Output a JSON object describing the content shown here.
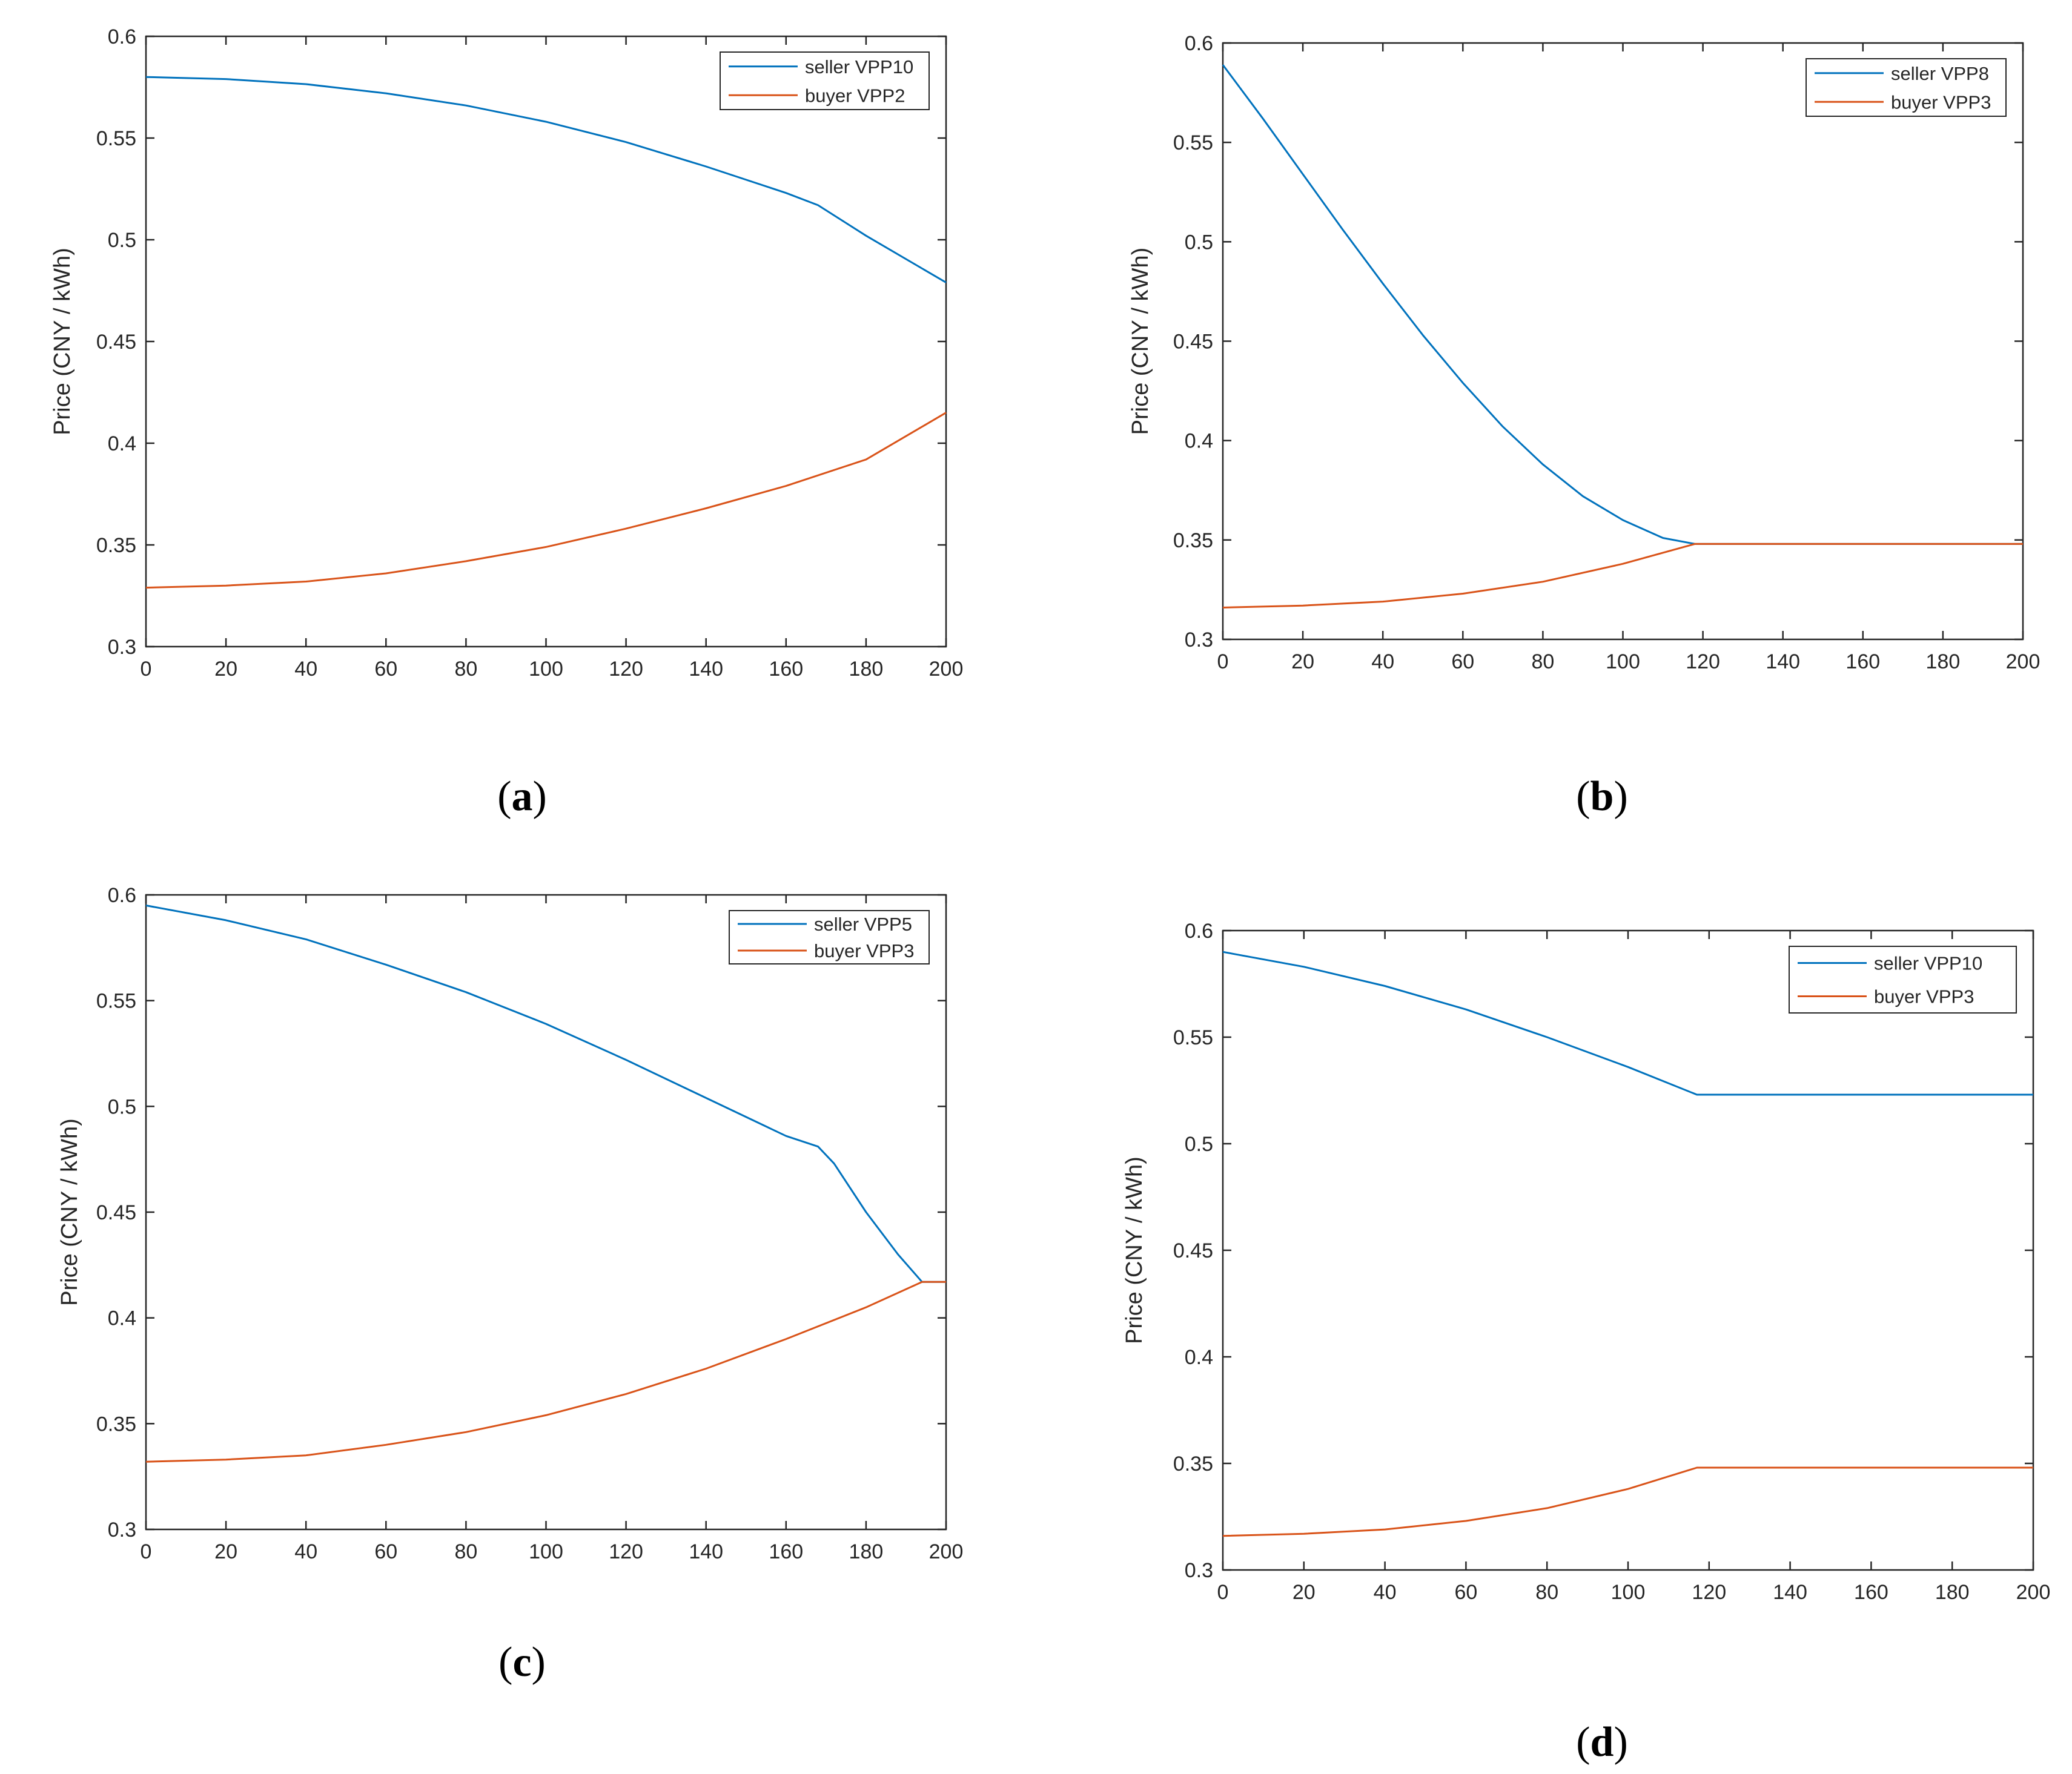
{
  "colors": {
    "seller": "#0072BD",
    "buyer": "#D95319",
    "axis": "#262626"
  },
  "chart_data": [
    {
      "type": "line",
      "caption": {
        "open": "(",
        "letter": "a",
        "close": ")"
      },
      "ylabel": "Price (CNY / kWh)",
      "xlim": [
        0,
        200
      ],
      "ylim": [
        0.3,
        0.6
      ],
      "xticks": [
        0,
        20,
        40,
        60,
        80,
        100,
        120,
        140,
        160,
        180,
        200
      ],
      "xtick_labels": [
        "0",
        "20",
        "40",
        "60",
        "80",
        "100",
        "120",
        "140",
        "160",
        "180",
        "200"
      ],
      "yticks": [
        0.3,
        0.35,
        0.4,
        0.45,
        0.5,
        0.55,
        0.6
      ],
      "ytick_labels": [
        "0.3",
        "0.35",
        "0.4",
        "0.45",
        "0.5",
        "0.55",
        "0.6"
      ],
      "legend_position": "top-right",
      "series": [
        {
          "name": "seller VPP10",
          "color_key": "seller",
          "x": [
            0,
            20,
            40,
            60,
            80,
            100,
            120,
            140,
            160,
            168,
            180,
            200
          ],
          "y": [
            0.58,
            0.579,
            0.5765,
            0.572,
            0.566,
            0.558,
            0.548,
            0.536,
            0.523,
            0.517,
            0.502,
            0.479
          ]
        },
        {
          "name": "buyer VPP2",
          "color_key": "buyer",
          "x": [
            0,
            20,
            40,
            60,
            80,
            100,
            120,
            140,
            160,
            180,
            200
          ],
          "y": [
            0.329,
            0.33,
            0.332,
            0.336,
            0.342,
            0.349,
            0.358,
            0.368,
            0.379,
            0.392,
            0.415
          ]
        }
      ]
    },
    {
      "type": "line",
      "caption": {
        "open": "(",
        "letter": "b",
        "close": ")"
      },
      "ylabel": "Price (CNY / kWh)",
      "xlim": [
        0,
        200
      ],
      "ylim": [
        0.3,
        0.6
      ],
      "xticks": [
        0,
        20,
        40,
        60,
        80,
        100,
        120,
        140,
        160,
        180,
        200
      ],
      "xtick_labels": [
        "0",
        "20",
        "40",
        "60",
        "80",
        "100",
        "120",
        "140",
        "160",
        "180",
        "200"
      ],
      "yticks": [
        0.3,
        0.35,
        0.4,
        0.45,
        0.5,
        0.55,
        0.6
      ],
      "ytick_labels": [
        "0.3",
        "0.35",
        "0.4",
        "0.45",
        "0.5",
        "0.55",
        "0.6"
      ],
      "legend_position": "top-right",
      "series": [
        {
          "name": "seller VPP8",
          "color_key": "seller",
          "x": [
            0,
            10,
            20,
            30,
            40,
            50,
            60,
            70,
            80,
            90,
            100,
            110,
            118,
            200
          ],
          "y": [
            0.589,
            0.562,
            0.534,
            0.506,
            0.479,
            0.453,
            0.429,
            0.407,
            0.388,
            0.372,
            0.36,
            0.351,
            0.348,
            0.348
          ]
        },
        {
          "name": "buyer VPP3",
          "color_key": "buyer",
          "x": [
            0,
            20,
            40,
            60,
            80,
            100,
            118,
            200
          ],
          "y": [
            0.316,
            0.317,
            0.319,
            0.323,
            0.329,
            0.338,
            0.348,
            0.348
          ]
        }
      ]
    },
    {
      "type": "line",
      "caption": {
        "open": "(",
        "letter": "c",
        "close": ")"
      },
      "ylabel": "Price (CNY / kWh)",
      "xlim": [
        0,
        200
      ],
      "ylim": [
        0.3,
        0.6
      ],
      "xticks": [
        0,
        20,
        40,
        60,
        80,
        100,
        120,
        140,
        160,
        180,
        200
      ],
      "xtick_labels": [
        "0",
        "20",
        "40",
        "60",
        "80",
        "100",
        "120",
        "140",
        "160",
        "180",
        "200"
      ],
      "yticks": [
        0.3,
        0.35,
        0.4,
        0.45,
        0.5,
        0.55,
        0.6
      ],
      "ytick_labels": [
        "0.3",
        "0.35",
        "0.4",
        "0.45",
        "0.5",
        "0.55",
        "0.6"
      ],
      "legend_position": "top-right",
      "series": [
        {
          "name": "seller VPP5",
          "color_key": "seller",
          "x": [
            0,
            20,
            40,
            60,
            80,
            100,
            120,
            140,
            160,
            168,
            172,
            180,
            188,
            194,
            200
          ],
          "y": [
            0.595,
            0.588,
            0.579,
            0.567,
            0.554,
            0.539,
            0.522,
            0.504,
            0.486,
            0.481,
            0.473,
            0.45,
            0.43,
            0.417,
            0.417
          ]
        },
        {
          "name": "buyer VPP3",
          "color_key": "buyer",
          "x": [
            0,
            20,
            40,
            60,
            80,
            100,
            120,
            140,
            160,
            180,
            194,
            200
          ],
          "y": [
            0.332,
            0.333,
            0.335,
            0.34,
            0.346,
            0.354,
            0.364,
            0.376,
            0.39,
            0.405,
            0.417,
            0.417
          ]
        }
      ]
    },
    {
      "type": "line",
      "caption": {
        "open": "(",
        "letter": "d",
        "close": ")"
      },
      "ylabel": "Price (CNY / kWh)",
      "xlim": [
        0,
        200
      ],
      "ylim": [
        0.3,
        0.6
      ],
      "xticks": [
        0,
        20,
        40,
        60,
        80,
        100,
        120,
        140,
        160,
        180,
        200
      ],
      "xtick_labels": [
        "0",
        "20",
        "40",
        "60",
        "80",
        "100",
        "120",
        "140",
        "160",
        "180",
        "200"
      ],
      "yticks": [
        0.3,
        0.35,
        0.4,
        0.45,
        0.5,
        0.55,
        0.6
      ],
      "ytick_labels": [
        "0.3",
        "0.35",
        "0.4",
        "0.45",
        "0.5",
        "0.55",
        "0.6"
      ],
      "legend_position": "top-right",
      "series": [
        {
          "name": "seller VPP10",
          "color_key": "seller",
          "x": [
            0,
            20,
            40,
            60,
            80,
            100,
            117,
            200
          ],
          "y": [
            0.59,
            0.583,
            0.574,
            0.563,
            0.55,
            0.536,
            0.523,
            0.523
          ]
        },
        {
          "name": "buyer VPP3",
          "color_key": "buyer",
          "x": [
            0,
            20,
            40,
            60,
            80,
            100,
            117,
            200
          ],
          "y": [
            0.316,
            0.317,
            0.319,
            0.323,
            0.329,
            0.338,
            0.348,
            0.348
          ]
        }
      ]
    }
  ]
}
